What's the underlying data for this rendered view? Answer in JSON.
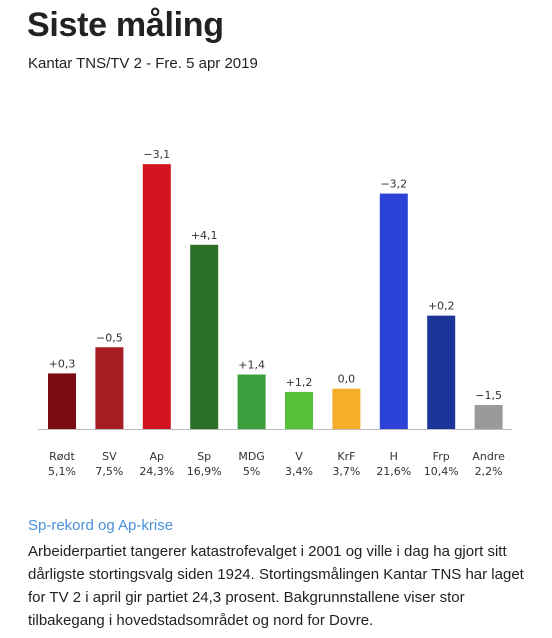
{
  "title": "Siste måling",
  "subtitle": "Kantar TNS/TV 2 - Fre. 5 apr 2019",
  "chart_data": {
    "type": "bar",
    "categories": [
      "Rødt",
      "SV",
      "Ap",
      "Sp",
      "MDG",
      "V",
      "KrF",
      "H",
      "Frp",
      "Andre"
    ],
    "value_labels": [
      "5,1%",
      "7,5%",
      "24,3%",
      "16,9%",
      "5%",
      "3,4%",
      "3,7%",
      "21,6%",
      "10,4%",
      "2,2%"
    ],
    "values": [
      5.1,
      7.5,
      24.3,
      16.9,
      5.0,
      3.4,
      3.7,
      21.6,
      10.4,
      2.2
    ],
    "changes": [
      "+0,3",
      "−0,5",
      "−3,1",
      "+4,1",
      "+1,4",
      "+1,2",
      "0,0",
      "−3,2",
      "+0,2",
      "−1,5"
    ],
    "colors": [
      "#7a0b12",
      "#a81c24",
      "#d2141f",
      "#2a7029",
      "#3a9e3d",
      "#57c13a",
      "#f6ad2a",
      "#2c41d6",
      "#1a3497",
      "#9a9a9a"
    ],
    "ylim": [
      0,
      25
    ],
    "grid": false,
    "legend": "none"
  },
  "article": {
    "heading": "Sp-rekord og Ap-krise",
    "body": "Arbeiderpartiet tangerer katastrofevalget i 2001 og ville i dag ha gjort sitt dårligste stortingsvalg siden 1924. Stortingsmålingen Kantar TNS har laget for TV 2 i april gir partiet 24,3 prosent. Bakgrunnstallene viser stor tilbakegang i hovedstadsområdet og nord for Dovre."
  }
}
